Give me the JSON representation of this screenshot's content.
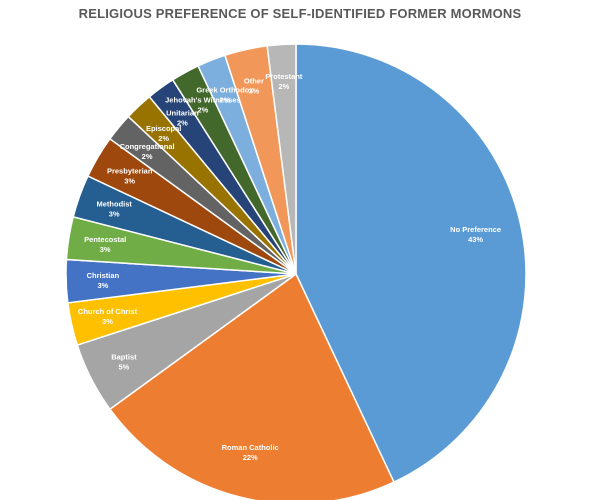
{
  "chart_data": {
    "type": "pie",
    "title": "RELIGIOUS PREFERENCE OF SELF-IDENTIFIED FORMER MORMONS",
    "slices": [
      {
        "label": "No Preference",
        "percent_label": "43%",
        "value": 43,
        "color": "#5b9bd5"
      },
      {
        "label": "Roman Catholic",
        "percent_label": "22%",
        "value": 22,
        "color": "#ed7d31"
      },
      {
        "label": "Baptist",
        "percent_label": "5%",
        "value": 5,
        "color": "#a5a5a5"
      },
      {
        "label": "Church of Christ",
        "percent_label": "3%",
        "value": 3,
        "color": "#ffc000"
      },
      {
        "label": "Christian",
        "percent_label": "3%",
        "value": 3,
        "color": "#4472c4"
      },
      {
        "label": "Pentecostal",
        "percent_label": "3%",
        "value": 3,
        "color": "#70ad47"
      },
      {
        "label": "Methodist",
        "percent_label": "3%",
        "value": 3,
        "color": "#255e91"
      },
      {
        "label": "Presbyterian",
        "percent_label": "3%",
        "value": 3,
        "color": "#9e480e"
      },
      {
        "label": "Congregational",
        "percent_label": "2%",
        "value": 2,
        "color": "#636363"
      },
      {
        "label": "Episcopal",
        "percent_label": "2%",
        "value": 2,
        "color": "#997300"
      },
      {
        "label": "Unitarian",
        "percent_label": "2%",
        "value": 2,
        "color": "#264478"
      },
      {
        "label": "Jehovah's Witnesses",
        "percent_label": "2%",
        "value": 2,
        "color": "#43682b"
      },
      {
        "label": "Greek Orthodox",
        "percent_label": "2%",
        "value": 2,
        "color": "#7cafdd"
      },
      {
        "label": "Other",
        "percent_label": "3%",
        "value": 3,
        "color": "#f1975a"
      },
      {
        "label": "Protestant",
        "percent_label": "2%",
        "value": 2,
        "color": "#b7b7b7"
      }
    ]
  }
}
